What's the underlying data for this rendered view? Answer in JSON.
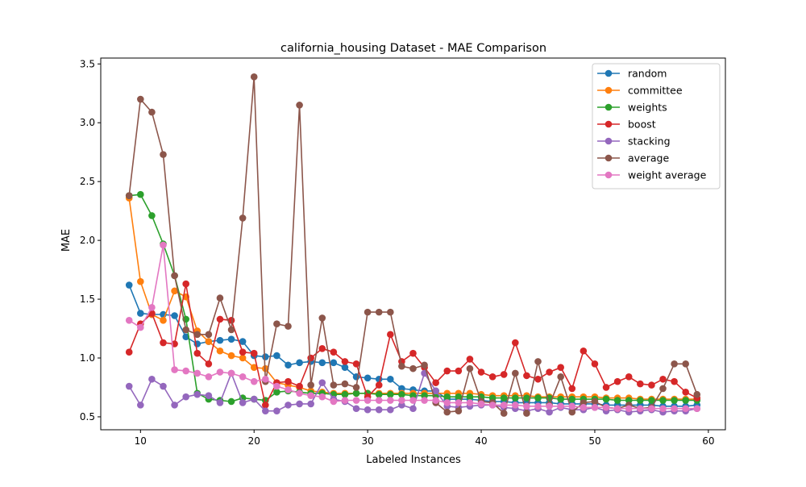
{
  "chart_data": {
    "type": "line",
    "title": "california_housing Dataset - MAE Comparison",
    "xlabel": "Labeled Instances",
    "ylabel": "MAE",
    "xlim": [
      6.5,
      61.5
    ],
    "ylim": [
      0.39,
      3.55
    ],
    "xticks": [
      10,
      20,
      30,
      40,
      50,
      60
    ],
    "yticks": [
      0.5,
      1.0,
      1.5,
      2.0,
      2.5,
      3.0,
      3.5
    ],
    "xtick_labels": [
      "10",
      "20",
      "30",
      "40",
      "50",
      "60"
    ],
    "ytick_labels": [
      "0.5",
      "1.0",
      "1.5",
      "2.0",
      "2.5",
      "3.0",
      "3.5"
    ],
    "grid": false,
    "legend_position": "top-right",
    "x": [
      9,
      10,
      11,
      12,
      13,
      14,
      15,
      16,
      17,
      18,
      19,
      20,
      21,
      22,
      23,
      24,
      25,
      26,
      27,
      28,
      29,
      30,
      31,
      32,
      33,
      34,
      35,
      36,
      37,
      38,
      39,
      40,
      41,
      42,
      43,
      44,
      45,
      46,
      47,
      48,
      49,
      50,
      51,
      52,
      53,
      54,
      55,
      56,
      57,
      58,
      59
    ],
    "series": [
      {
        "name": "random",
        "color": "#1f77b4",
        "values": [
          1.62,
          1.38,
          1.37,
          1.37,
          1.36,
          1.18,
          1.12,
          1.14,
          1.15,
          1.16,
          1.14,
          1.02,
          1.01,
          1.02,
          0.94,
          0.96,
          0.97,
          0.96,
          0.96,
          0.92,
          0.84,
          0.83,
          0.82,
          0.82,
          0.74,
          0.73,
          0.72,
          0.72,
          0.65,
          0.65,
          0.65,
          0.64,
          0.63,
          0.63,
          0.62,
          0.62,
          0.62,
          0.62,
          0.61,
          0.61,
          0.61,
          0.61,
          0.6,
          0.6,
          0.6,
          0.6,
          0.6,
          0.59,
          0.59,
          0.59,
          0.6
        ]
      },
      {
        "name": "committee",
        "color": "#ff7f0e",
        "values": [
          2.36,
          1.65,
          1.37,
          1.32,
          1.57,
          1.52,
          1.23,
          1.14,
          1.06,
          1.02,
          1.0,
          0.92,
          0.91,
          0.79,
          0.77,
          0.75,
          0.72,
          0.71,
          0.7,
          0.7,
          0.7,
          0.7,
          0.7,
          0.7,
          0.7,
          0.7,
          0.7,
          0.7,
          0.7,
          0.7,
          0.7,
          0.69,
          0.68,
          0.68,
          0.68,
          0.68,
          0.67,
          0.67,
          0.67,
          0.67,
          0.67,
          0.67,
          0.66,
          0.66,
          0.66,
          0.65,
          0.65,
          0.65,
          0.65,
          0.65,
          0.65
        ]
      },
      {
        "name": "weights",
        "color": "#2ca02c",
        "values": [
          2.38,
          2.39,
          2.21,
          1.97,
          1.7,
          1.33,
          0.7,
          0.65,
          0.64,
          0.63,
          0.66,
          0.65,
          0.64,
          0.71,
          0.72,
          0.71,
          0.7,
          0.7,
          0.69,
          0.69,
          0.7,
          0.7,
          0.69,
          0.69,
          0.69,
          0.68,
          0.68,
          0.68,
          0.67,
          0.67,
          0.67,
          0.67,
          0.66,
          0.66,
          0.66,
          0.66,
          0.66,
          0.66,
          0.65,
          0.65,
          0.65,
          0.65,
          0.65,
          0.64,
          0.64,
          0.64,
          0.64,
          0.64,
          0.64,
          0.64,
          0.64
        ]
      },
      {
        "name": "boost",
        "color": "#d62728",
        "values": [
          1.05,
          1.29,
          1.38,
          1.13,
          1.12,
          1.63,
          1.04,
          0.95,
          1.33,
          1.32,
          1.05,
          1.04,
          0.6,
          0.79,
          0.8,
          0.76,
          1.0,
          1.08,
          1.05,
          0.97,
          0.95,
          0.67,
          0.77,
          1.2,
          0.97,
          1.04,
          0.92,
          0.79,
          0.89,
          0.89,
          0.99,
          0.88,
          0.84,
          0.86,
          1.13,
          0.85,
          0.82,
          0.88,
          0.92,
          0.74,
          1.06,
          0.95,
          0.75,
          0.8,
          0.84,
          0.78,
          0.77,
          0.82,
          0.8,
          0.71,
          0.66
        ]
      },
      {
        "name": "stacking",
        "color": "#9467bd",
        "values": [
          0.76,
          0.6,
          0.82,
          0.76,
          0.6,
          0.67,
          0.69,
          0.68,
          0.62,
          0.87,
          0.62,
          0.65,
          0.55,
          0.55,
          0.6,
          0.61,
          0.61,
          0.79,
          0.65,
          0.63,
          0.57,
          0.56,
          0.56,
          0.56,
          0.6,
          0.57,
          0.87,
          0.72,
          0.59,
          0.58,
          0.59,
          0.6,
          0.6,
          0.58,
          0.57,
          0.55,
          0.57,
          0.54,
          0.58,
          0.56,
          0.56,
          0.58,
          0.55,
          0.56,
          0.54,
          0.55,
          0.56,
          0.54,
          0.55,
          0.55,
          0.57
        ]
      },
      {
        "name": "average",
        "color": "#8c564b",
        "values": [
          2.38,
          3.2,
          3.09,
          2.73,
          1.7,
          1.24,
          1.2,
          1.2,
          1.51,
          1.24,
          2.19,
          3.39,
          0.8,
          1.29,
          1.27,
          3.15,
          0.77,
          1.34,
          0.77,
          0.78,
          0.75,
          1.39,
          1.39,
          1.39,
          0.93,
          0.91,
          0.94,
          0.62,
          0.54,
          0.55,
          0.91,
          0.63,
          0.62,
          0.53,
          0.87,
          0.53,
          0.97,
          0.6,
          0.84,
          0.54,
          0.62,
          0.63,
          0.58,
          0.57,
          0.6,
          0.57,
          0.58,
          0.74,
          0.95,
          0.95,
          0.69
        ]
      },
      {
        "name": "weight average",
        "color": "#e377c2",
        "values": [
          1.32,
          1.26,
          1.43,
          1.96,
          0.9,
          0.89,
          0.87,
          0.84,
          0.88,
          0.87,
          0.84,
          0.8,
          0.82,
          0.76,
          0.73,
          0.7,
          0.68,
          0.67,
          0.63,
          0.64,
          0.64,
          0.64,
          0.64,
          0.64,
          0.64,
          0.64,
          0.64,
          0.64,
          0.62,
          0.62,
          0.62,
          0.61,
          0.6,
          0.6,
          0.6,
          0.59,
          0.59,
          0.59,
          0.59,
          0.59,
          0.58,
          0.58,
          0.58,
          0.57,
          0.57,
          0.57,
          0.57,
          0.57,
          0.57,
          0.57,
          0.57
        ]
      }
    ]
  }
}
